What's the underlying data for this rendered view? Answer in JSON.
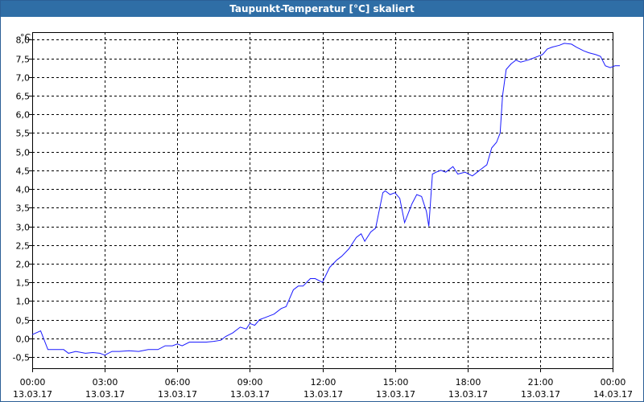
{
  "title": "Taupunkt-Temperatur [°C] skaliert",
  "unit": "°C",
  "chart_data": {
    "type": "line",
    "title": "Taupunkt-Temperatur [°C] skaliert",
    "ylabel": "°C",
    "xlabel": "",
    "ylim": [
      -0.8,
      8.2
    ],
    "xlim": [
      0,
      24
    ],
    "grid": true,
    "line_color": "#1a1aff",
    "y_ticks": [
      8.0,
      7.5,
      7.0,
      6.5,
      6.0,
      5.5,
      5.0,
      4.5,
      4.0,
      3.5,
      3.0,
      2.5,
      2.0,
      1.5,
      1.0,
      0.5,
      0.0,
      -0.5
    ],
    "y_tick_labels": [
      "8,0",
      "7,5",
      "7,0",
      "6,5",
      "6,0",
      "5,5",
      "5,0",
      "4,5",
      "4,0",
      "3,5",
      "3,0",
      "2,5",
      "2,0",
      "1,5",
      "1,0",
      "0,5",
      "0,0",
      "-0,5"
    ],
    "x_ticks": [
      {
        "hour": 0,
        "time": "00:00",
        "date": "13.03.17"
      },
      {
        "hour": 3,
        "time": "03:00",
        "date": "13.03.17"
      },
      {
        "hour": 6,
        "time": "06:00",
        "date": "13.03.17"
      },
      {
        "hour": 9,
        "time": "09:00",
        "date": "13.03.17"
      },
      {
        "hour": 12,
        "time": "12:00",
        "date": "13.03.17"
      },
      {
        "hour": 15,
        "time": "15:00",
        "date": "13.03.17"
      },
      {
        "hour": 18,
        "time": "18:00",
        "date": "13.03.17"
      },
      {
        "hour": 21,
        "time": "21:00",
        "date": "13.03.17"
      },
      {
        "hour": 24,
        "time": "00:00",
        "date": "14.03.17"
      }
    ],
    "series": [
      {
        "points": [
          [
            0.0,
            0.1
          ],
          [
            0.35,
            0.2
          ],
          [
            0.65,
            -0.3
          ],
          [
            1.0,
            -0.3
          ],
          [
            1.3,
            -0.3
          ],
          [
            1.5,
            -0.4
          ],
          [
            1.8,
            -0.35
          ],
          [
            2.2,
            -0.4
          ],
          [
            2.5,
            -0.38
          ],
          [
            2.8,
            -0.4
          ],
          [
            3.0,
            -0.45
          ],
          [
            3.3,
            -0.35
          ],
          [
            3.6,
            -0.35
          ],
          [
            4.0,
            -0.33
          ],
          [
            4.4,
            -0.35
          ],
          [
            4.8,
            -0.3
          ],
          [
            5.2,
            -0.3
          ],
          [
            5.5,
            -0.2
          ],
          [
            5.8,
            -0.2
          ],
          [
            6.0,
            -0.15
          ],
          [
            6.2,
            -0.2
          ],
          [
            6.5,
            -0.1
          ],
          [
            6.8,
            -0.1
          ],
          [
            7.2,
            -0.1
          ],
          [
            7.5,
            -0.08
          ],
          [
            7.8,
            -0.05
          ],
          [
            8.0,
            0.05
          ],
          [
            8.3,
            0.15
          ],
          [
            8.6,
            0.3
          ],
          [
            8.85,
            0.25
          ],
          [
            9.0,
            0.4
          ],
          [
            9.2,
            0.35
          ],
          [
            9.4,
            0.5
          ],
          [
            9.6,
            0.55
          ],
          [
            10.0,
            0.65
          ],
          [
            10.3,
            0.8
          ],
          [
            10.5,
            0.85
          ],
          [
            10.8,
            1.3
          ],
          [
            11.0,
            1.4
          ],
          [
            11.2,
            1.4
          ],
          [
            11.5,
            1.6
          ],
          [
            11.7,
            1.6
          ],
          [
            12.0,
            1.5
          ],
          [
            12.3,
            1.9
          ],
          [
            12.6,
            2.1
          ],
          [
            12.8,
            2.2
          ],
          [
            13.1,
            2.4
          ],
          [
            13.4,
            2.7
          ],
          [
            13.6,
            2.8
          ],
          [
            13.75,
            2.6
          ],
          [
            14.0,
            2.85
          ],
          [
            14.2,
            2.95
          ],
          [
            14.5,
            3.9
          ],
          [
            14.6,
            3.95
          ],
          [
            14.8,
            3.85
          ],
          [
            15.0,
            3.9
          ],
          [
            15.2,
            3.75
          ],
          [
            15.4,
            3.1
          ],
          [
            15.7,
            3.6
          ],
          [
            15.9,
            3.85
          ],
          [
            16.1,
            3.8
          ],
          [
            16.3,
            3.4
          ],
          [
            16.4,
            3.0
          ],
          [
            16.55,
            4.4
          ],
          [
            16.7,
            4.45
          ],
          [
            16.9,
            4.5
          ],
          [
            17.1,
            4.45
          ],
          [
            17.4,
            4.6
          ],
          [
            17.6,
            4.4
          ],
          [
            17.9,
            4.45
          ],
          [
            18.2,
            4.35
          ],
          [
            18.4,
            4.45
          ],
          [
            18.6,
            4.55
          ],
          [
            18.8,
            4.65
          ],
          [
            19.0,
            5.1
          ],
          [
            19.2,
            5.25
          ],
          [
            19.35,
            5.5
          ],
          [
            19.45,
            6.5
          ],
          [
            19.6,
            7.2
          ],
          [
            19.8,
            7.35
          ],
          [
            20.0,
            7.45
          ],
          [
            20.2,
            7.4
          ],
          [
            20.5,
            7.45
          ],
          [
            20.7,
            7.5
          ],
          [
            20.9,
            7.55
          ],
          [
            21.1,
            7.6
          ],
          [
            21.3,
            7.75
          ],
          [
            21.5,
            7.8
          ],
          [
            21.8,
            7.85
          ],
          [
            22.0,
            7.9
          ],
          [
            22.3,
            7.88
          ],
          [
            22.5,
            7.8
          ],
          [
            22.8,
            7.7
          ],
          [
            23.0,
            7.65
          ],
          [
            23.3,
            7.6
          ],
          [
            23.5,
            7.55
          ],
          [
            23.7,
            7.3
          ],
          [
            23.9,
            7.25
          ],
          [
            24.1,
            7.3
          ],
          [
            24.3,
            7.3
          ]
        ]
      }
    ]
  }
}
